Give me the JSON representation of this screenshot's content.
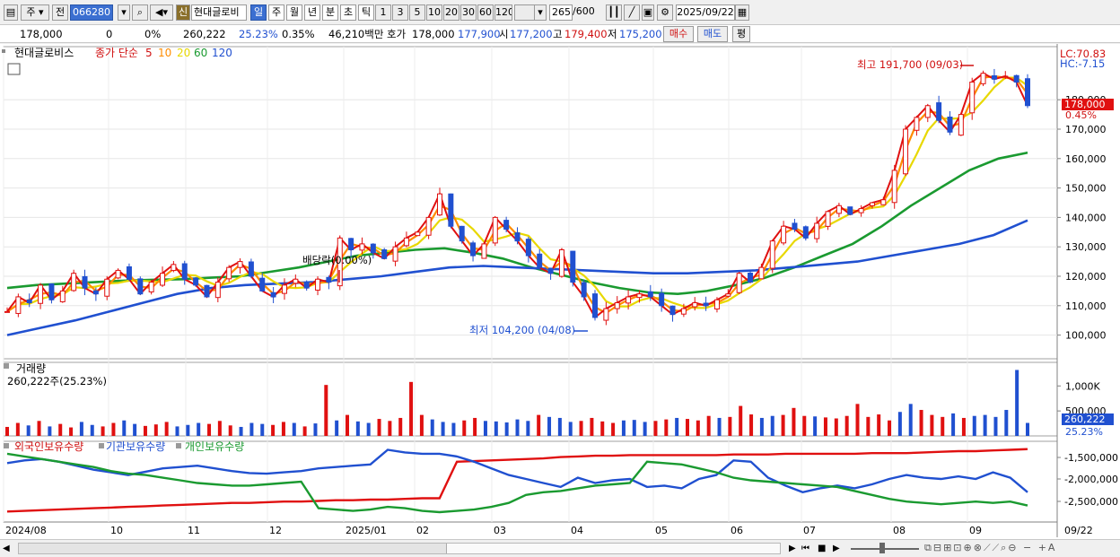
{
  "toolbar": {
    "market_tab": "주",
    "prev_tab": "전",
    "stock_code": "066280",
    "stock_name": "현대글로비",
    "credit_badge": "신",
    "periods": [
      "일",
      "주",
      "월",
      "년",
      "분",
      "초",
      "틱"
    ],
    "active_period": "일",
    "minutes": [
      "1",
      "3",
      "5",
      "10",
      "20",
      "30",
      "60",
      "120"
    ],
    "count": "265",
    "count_max": "/600",
    "date": "2025/09/22"
  },
  "quote": {
    "price": "178,000",
    "change": "0",
    "change_pct": "0%",
    "volume": "260,222",
    "turnover_pct": "25.23%",
    "vol_pct": "0.35%",
    "amount": "46,210백만",
    "ask_label": "호가",
    "ask": "178,000",
    "bid": "177,900",
    "open_label": "시",
    "open": "177,200",
    "high_label": "고",
    "high": "179,400",
    "low_label": "저",
    "low": "175,200",
    "buy_button": "매수",
    "sell_button": "매도",
    "avg_button": "평"
  },
  "legend": {
    "name": "현대글로비스",
    "ma_label": "종가 단순",
    "ma_periods": [
      "5",
      "10",
      "20",
      "60",
      "120"
    ],
    "ma_colors": [
      "#e01010",
      "#ff8c00",
      "#e8d800",
      "#1a9a30",
      "#2050d0"
    ]
  },
  "volume_panel": {
    "title": "거래량",
    "current": "260,222주(25.23%)"
  },
  "holdings_panel": {
    "series": [
      "외국인보유수량",
      "기관보유수량",
      "개인보유수량"
    ],
    "colors": [
      "#e01010",
      "#2050d0",
      "#1a9a30"
    ]
  },
  "chart_data": [
    {
      "type": "candlestick",
      "title": "현대글로비스",
      "y_ticks": [
        "180,000",
        "170,000",
        "160,000",
        "150,000",
        "140,000",
        "130,000",
        "120,000",
        "110,000",
        "100,000"
      ],
      "ylim": [
        95000,
        195000
      ],
      "x_labels": [
        "2024/08",
        "10",
        "11",
        "12",
        "2025/01",
        "02",
        "03",
        "04",
        "05",
        "06",
        "07",
        "08",
        "09",
        "09/22"
      ],
      "annotations": {
        "high": "최고 191,700 (09/03)",
        "low": "최저 104,200 (04/08)",
        "dividend": "배당락(0.00%)",
        "lc": "LC:70.83",
        "hc": "HC:-7.15",
        "last_price": "178,000",
        "last_pct": "0.45%"
      },
      "close_path": [
        108000,
        113000,
        111000,
        117000,
        112000,
        115000,
        121000,
        116000,
        114000,
        119000,
        122000,
        119000,
        114000,
        118000,
        121000,
        124000,
        119000,
        117000,
        113000,
        118000,
        123000,
        125000,
        120000,
        115000,
        113000,
        117000,
        119000,
        116000,
        119000,
        118000,
        133000,
        129000,
        131000,
        128000,
        126000,
        130000,
        133000,
        135000,
        140000,
        148000,
        137000,
        132000,
        127000,
        131000,
        140000,
        136000,
        132000,
        127000,
        123000,
        121000,
        129000,
        118000,
        113000,
        106000,
        109000,
        111000,
        113000,
        114000,
        113000,
        110000,
        107000,
        109000,
        111000,
        110000,
        112000,
        114000,
        121000,
        118000,
        123000,
        132000,
        137000,
        136000,
        133000,
        138000,
        142000,
        144000,
        141000,
        143000,
        145000,
        146000,
        156000,
        170000,
        174000,
        178000,
        173000,
        169000,
        175000,
        186000,
        189000,
        187000,
        188000,
        186000,
        178000
      ],
      "ma_series": [
        {
          "name": "60",
          "values": [
            116000,
            117000,
            117500,
            118000,
            118500,
            118800,
            119000,
            119500,
            120000,
            121500,
            123000,
            125000,
            127000,
            128000,
            129000,
            129500,
            128000,
            126000,
            123000,
            120500,
            118000,
            116000,
            114500,
            114000,
            115000,
            117000,
            119500,
            123000,
            127000,
            131000,
            137000,
            144000,
            150000,
            156000,
            160000,
            162000
          ]
        },
        {
          "name": "120",
          "values": [
            100000,
            102500,
            105000,
            108000,
            111000,
            114000,
            116000,
            117000,
            117500,
            118000,
            119000,
            120000,
            121500,
            123000,
            123500,
            123000,
            122500,
            122000,
            121500,
            121000,
            121000,
            121500,
            122000,
            123000,
            124000,
            125000,
            127000,
            129000,
            131000,
            134000,
            139000
          ]
        }
      ]
    },
    {
      "type": "bar",
      "title": "거래량",
      "y_ticks": [
        "1,000K",
        "500,000"
      ],
      "last_value": "260,222",
      "last_pct": "25.23%",
      "values": [
        180,
        260,
        210,
        300,
        190,
        240,
        170,
        280,
        220,
        190,
        260,
        310,
        240,
        200,
        230,
        280,
        190,
        220,
        260,
        240,
        300,
        210,
        180,
        260,
        240,
        220,
        280,
        260,
        190,
        250,
        1020,
        310,
        420,
        290,
        260,
        340,
        300,
        360,
        1080,
        420,
        330,
        280,
        260,
        310,
        360,
        300,
        290,
        270,
        330,
        300,
        420,
        380,
        360,
        280,
        300,
        360,
        290,
        260,
        310,
        320,
        280,
        300,
        330,
        360,
        340,
        310,
        400,
        360,
        380,
        600,
        430,
        360,
        400,
        420,
        560,
        400,
        390,
        370,
        350,
        400,
        640,
        380,
        430,
        310,
        480,
        640,
        520,
        420,
        380,
        450,
        360,
        400,
        420,
        380,
        520,
        1320,
        260
      ]
    },
    {
      "type": "line",
      "title": "보유수량",
      "series": [
        "외국인보유수량",
        "기관보유수량",
        "개인보유수량"
      ],
      "y_ticks": [
        "-1,500,000",
        "-2,000,000",
        "-2,500,000"
      ]
    }
  ],
  "bottombar": {
    "date_label": "09/22"
  }
}
